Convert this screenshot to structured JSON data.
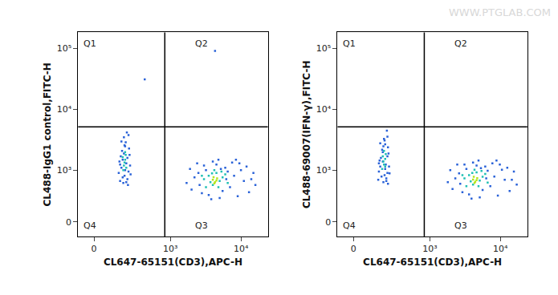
{
  "watermark": "WWW.PTGLAB.COM",
  "chart_data": [
    {
      "type": "scatter",
      "x_label": "CL647-65151(CD3),APC-H",
      "y_label": "CL488-IgG1 control,FITC-H",
      "xlim": [
        -90,
        24000
      ],
      "ylim": [
        -170,
        180000
      ],
      "xticks": [
        0,
        {
          "value": 1000,
          "label": "10³"
        },
        {
          "value": 10000,
          "label": "10⁴"
        }
      ],
      "yticks": [
        0,
        {
          "value": 1000,
          "label": "10³"
        },
        {
          "value": 10000,
          "label": "10⁴"
        },
        {
          "value": 100000,
          "label": "10⁵"
        }
      ],
      "gate": {
        "x": 830,
        "y": 5200
      },
      "quadrant_labels": [
        "Q1",
        "Q2",
        "Q3",
        "Q4"
      ],
      "grid": false,
      "marker": "dot",
      "series": [
        {
          "color": "#2a62d8",
          "x": [
            150,
            180,
            200,
            220,
            170,
            240,
            190,
            160,
            210,
            230,
            175,
            195,
            215,
            185,
            245,
            165,
            205,
            225,
            155,
            235,
            180,
            200,
            190,
            170,
            220,
            250,
            160,
            210,
            230,
            195,
            420,
            4300,
            1700,
            2000,
            2500,
            3000,
            3500,
            4000,
            5000,
            6000,
            7000,
            8000,
            9500,
            11000,
            13000,
            15000,
            2200,
            2800,
            3200,
            4500,
            5500,
            6500,
            7500,
            9000,
            10000,
            12000,
            16000,
            1900,
            2600,
            3800,
            4800,
            6200,
            8500,
            14000,
            2400,
            5200
          ],
          "y": [
            900,
            1500,
            2500,
            700,
            1100,
            1800,
            3500,
            650,
            1300,
            950,
            2100,
            800,
            4200,
            600,
            1200,
            1700,
            2900,
            550,
            1400,
            2300,
            750,
            1000,
            1900,
            3000,
            1600,
            850,
            1250,
            620,
            3800,
            2600,
            31000,
            90000,
            600,
            450,
            900,
            1200,
            350,
            1400,
            300,
            1100,
            500,
            800,
            1300,
            650,
            400,
            900,
            750,
            380,
            1000,
            1250,
            420,
            950,
            1350,
            330,
            1000,
            1150,
            550,
            1050,
            550,
            280,
            1500,
            700,
            1500,
            700,
            1300,
            1050
          ]
        },
        {
          "color": "#1fc0b4",
          "x": [
            190,
            200,
            185,
            205,
            195,
            180,
            210,
            200,
            3000,
            3500,
            4000,
            4500,
            5000,
            5500,
            3200,
            6000,
            4200,
            3700,
            4800,
            5300,
            2800,
            6500,
            3900
          ],
          "y": [
            1200,
            1500,
            1000,
            1800,
            1350,
            1650,
            1100,
            2000,
            700,
            800,
            550,
            900,
            650,
            750,
            500,
            850,
            1000,
            620,
            500,
            950,
            800,
            600,
            880
          ]
        },
        {
          "color": "#b5e61d",
          "x": [
            4000,
            4300,
            4600,
            4200,
            4500,
            4100
          ],
          "y": [
            680,
            620,
            720,
            590,
            660,
            760
          ]
        }
      ]
    },
    {
      "type": "scatter",
      "x_label": "CL647-65151(CD3),APC-H",
      "y_label": "CL488-69007(IFN-γ),FITC-H",
      "xlim": [
        -90,
        24000
      ],
      "ylim": [
        -170,
        180000
      ],
      "xticks": [
        0,
        {
          "value": 1000,
          "label": "10³"
        },
        {
          "value": 10000,
          "label": "10⁴"
        }
      ],
      "yticks": [
        0,
        {
          "value": 1000,
          "label": "10³"
        },
        {
          "value": 10000,
          "label": "10⁴"
        },
        {
          "value": 100000,
          "label": "10⁵"
        }
      ],
      "gate": {
        "x": 830,
        "y": 5200
      },
      "quadrant_labels": [
        "Q1",
        "Q2",
        "Q3",
        "Q4"
      ],
      "grid": false,
      "marker": "dot",
      "series": [
        {
          "color": "#2a62d8",
          "x": [
            155,
            185,
            205,
            215,
            165,
            235,
            195,
            150,
            210,
            225,
            180,
            200,
            220,
            190,
            240,
            170,
            200,
            230,
            160,
            230,
            175,
            205,
            185,
            165,
            225,
            245,
            155,
            215,
            225,
            190,
            1800,
            2100,
            2600,
            3100,
            3600,
            4100,
            5100,
            6100,
            7200,
            8200,
            9800,
            11500,
            13500,
            15500,
            2300,
            2900,
            3300,
            4600,
            5600,
            6600,
            7700,
            9200,
            10500,
            12500,
            17000,
            1950,
            2700,
            3900,
            4900,
            6300,
            8800,
            14500,
            2450,
            5300
          ],
          "y": [
            950,
            1400,
            2700,
            720,
            1150,
            1900,
            3300,
            680,
            1250,
            900,
            2200,
            820,
            4500,
            620,
            1150,
            1600,
            3100,
            580,
            1450,
            2400,
            780,
            1050,
            2000,
            2800,
            1700,
            880,
            1300,
            650,
            3600,
            2500,
            620,
            460,
            880,
            1250,
            360,
            1350,
            310,
            1150,
            520,
            780,
            1250,
            680,
            420,
            950,
            720,
            400,
            1050,
            1200,
            440,
            980,
            1300,
            340,
            1020,
            1100,
            560,
            1000,
            580,
            290,
            1450,
            720,
            1450,
            680,
            1250,
            1080
          ]
        },
        {
          "color": "#1fc0b4",
          "x": [
            195,
            205,
            180,
            210,
            190,
            185,
            205,
            195,
            3100,
            3600,
            4100,
            4600,
            5100,
            5600,
            3300,
            6100,
            4300,
            3800,
            4900,
            5400,
            2900,
            6600,
            4000
          ],
          "y": [
            1250,
            1550,
            1050,
            1850,
            1400,
            1700,
            1150,
            2100,
            720,
            820,
            560,
            920,
            660,
            770,
            520,
            860,
            1020,
            640,
            520,
            970,
            820,
            610,
            900
          ]
        },
        {
          "color": "#b5e61d",
          "x": [
            4100,
            4400,
            4700,
            4300,
            4600,
            4200
          ],
          "y": [
            690,
            630,
            730,
            600,
            670,
            770
          ]
        }
      ]
    }
  ]
}
